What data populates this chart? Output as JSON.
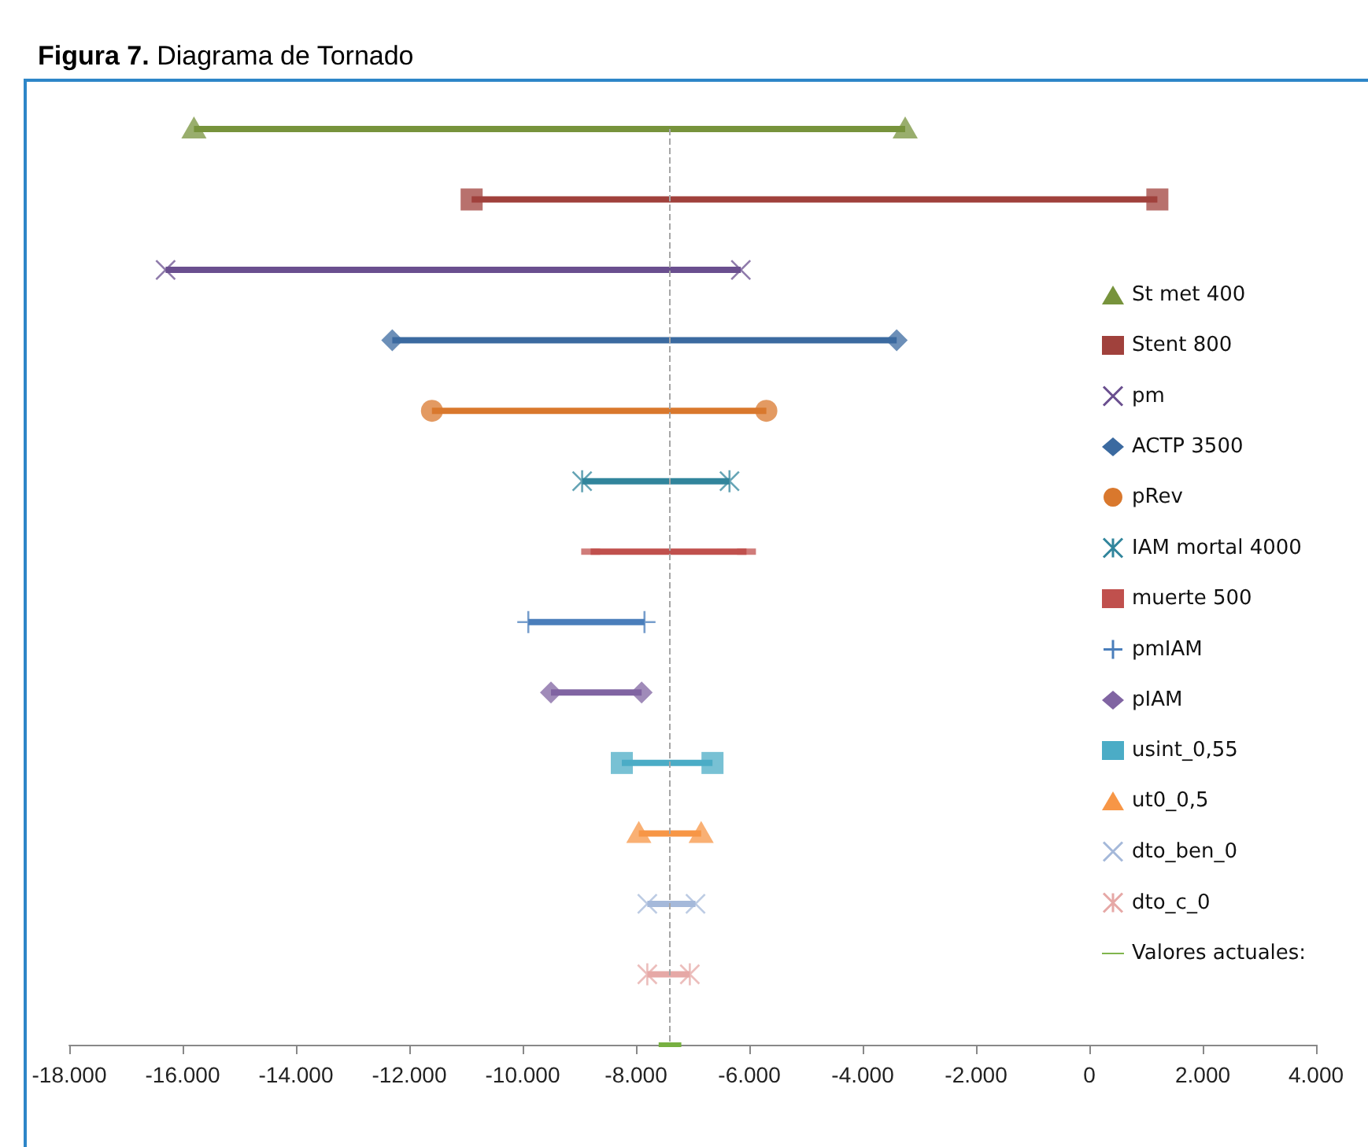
{
  "chart_data": {
    "type": "bar",
    "orientation": "horizontal",
    "title": "Figura 7. Diagrama de Tornado",
    "categories": [
      null,
      null,
      null,
      null,
      null,
      null,
      null,
      null,
      null,
      null,
      null,
      null,
      null,
      null
    ],
    "xlim": [
      -18000,
      4000
    ],
    "xticks": [
      {
        "value": -18000,
        "label": "-18.000"
      },
      {
        "value": -16000,
        "label": "-16.000"
      },
      {
        "value": -14000,
        "label": "-14.000"
      },
      {
        "value": -12000,
        "label": "-12.000"
      },
      {
        "value": -10000,
        "label": "-10.000"
      },
      {
        "value": -8000,
        "label": "-8.000"
      },
      {
        "value": -6000,
        "label": "-6.000"
      },
      {
        "value": -4000,
        "label": "-4.000"
      },
      {
        "value": -2000,
        "label": "-2.000"
      },
      {
        "value": 0,
        "label": "0"
      },
      {
        "value": 2000,
        "label": "2.000"
      },
      {
        "value": 4000,
        "label": "4.000"
      }
    ],
    "tick_labels": "x",
    "grid": false,
    "legend": "right",
    "ref_lines": [
      {
        "axis": "x",
        "value": -7400,
        "color": "#a6a6a6",
        "line_style": "dashed"
      }
    ],
    "series": [
      {
        "name": "St met 400",
        "color": "#77933c",
        "marker": "triangle",
        "base": [
          -15800,
          null,
          null,
          null,
          null,
          null,
          null,
          null,
          null,
          null,
          null,
          null,
          null,
          null
        ],
        "values": [
          12550,
          null,
          null,
          null,
          null,
          null,
          null,
          null,
          null,
          null,
          null,
          null,
          null,
          null
        ]
      },
      {
        "name": "Stent 800",
        "color": "#a0413c",
        "marker": "square",
        "base": [
          null,
          -10900,
          null,
          null,
          null,
          null,
          null,
          null,
          null,
          null,
          null,
          null,
          null,
          null
        ],
        "values": [
          null,
          12100,
          null,
          null,
          null,
          null,
          null,
          null,
          null,
          null,
          null,
          null,
          null,
          null
        ]
      },
      {
        "name": "pm",
        "color": "#6a4f8f",
        "marker": "cross",
        "base": [
          null,
          null,
          -16300,
          null,
          null,
          null,
          null,
          null,
          null,
          null,
          null,
          null,
          null,
          null
        ],
        "values": [
          null,
          null,
          10150,
          null,
          null,
          null,
          null,
          null,
          null,
          null,
          null,
          null,
          null,
          null
        ]
      },
      {
        "name": "ACTP 3500",
        "color": "#3b6aa0",
        "marker": "diamond",
        "base": [
          null,
          null,
          null,
          -12300,
          null,
          null,
          null,
          null,
          null,
          null,
          null,
          null,
          null,
          null
        ],
        "values": [
          null,
          null,
          null,
          8900,
          null,
          null,
          null,
          null,
          null,
          null,
          null,
          null,
          null,
          null
        ]
      },
      {
        "name": "pRev",
        "color": "#d9782d",
        "marker": "circle",
        "base": [
          null,
          null,
          null,
          null,
          -11600,
          null,
          null,
          null,
          null,
          null,
          null,
          null,
          null,
          null
        ],
        "values": [
          null,
          null,
          null,
          null,
          5900,
          null,
          null,
          null,
          null,
          null,
          null,
          null,
          null,
          null
        ]
      },
      {
        "name": "IAM mortal 4000",
        "color": "#31859c",
        "marker": "star",
        "base": [
          null,
          null,
          null,
          null,
          null,
          -8950,
          null,
          null,
          null,
          null,
          null,
          null,
          null,
          null
        ],
        "values": [
          null,
          null,
          null,
          null,
          null,
          2600,
          null,
          null,
          null,
          null,
          null,
          null,
          null,
          null
        ]
      },
      {
        "name": "muerte 500",
        "color": "#c0504d",
        "marker": "dash",
        "base": [
          null,
          null,
          null,
          null,
          null,
          null,
          -8800,
          null,
          null,
          null,
          null,
          null,
          null,
          null
        ],
        "values": [
          null,
          null,
          null,
          null,
          null,
          null,
          2750,
          null,
          null,
          null,
          null,
          null,
          null,
          null
        ]
      },
      {
        "name": "pmIAM",
        "color": "#4a7ebb",
        "marker": "plus",
        "base": [
          null,
          null,
          null,
          null,
          null,
          null,
          null,
          -9900,
          null,
          null,
          null,
          null,
          null,
          null
        ],
        "values": [
          null,
          null,
          null,
          null,
          null,
          null,
          null,
          2050,
          null,
          null,
          null,
          null,
          null,
          null
        ]
      },
      {
        "name": "pIAM",
        "color": "#8064a2",
        "marker": "diamond",
        "base": [
          null,
          null,
          null,
          null,
          null,
          null,
          null,
          null,
          -9500,
          null,
          null,
          null,
          null,
          null
        ],
        "values": [
          null,
          null,
          null,
          null,
          null,
          null,
          null,
          null,
          1600,
          null,
          null,
          null,
          null,
          null
        ]
      },
      {
        "name": "usint_0,55",
        "color": "#4bacc6",
        "marker": "square",
        "base": [
          null,
          null,
          null,
          null,
          null,
          null,
          null,
          null,
          null,
          -8250,
          null,
          null,
          null,
          null
        ],
        "values": [
          null,
          null,
          null,
          null,
          null,
          null,
          null,
          null,
          null,
          1600,
          null,
          null,
          null,
          null
        ]
      },
      {
        "name": "ut0_0,5",
        "color": "#f79646",
        "marker": "triangle",
        "base": [
          null,
          null,
          null,
          null,
          null,
          null,
          null,
          null,
          null,
          null,
          -7950,
          null,
          null,
          null
        ],
        "values": [
          null,
          null,
          null,
          null,
          null,
          null,
          null,
          null,
          null,
          null,
          1100,
          null,
          null,
          null
        ]
      },
      {
        "name": "dto_ben_0",
        "color": "#a5b9da",
        "marker": "cross",
        "base": [
          null,
          null,
          null,
          null,
          null,
          null,
          null,
          null,
          null,
          null,
          null,
          -7800,
          null,
          null
        ],
        "values": [
          null,
          null,
          null,
          null,
          null,
          null,
          null,
          null,
          null,
          null,
          null,
          850,
          null,
          null
        ]
      },
      {
        "name": "dto_c_0",
        "color": "#e6a8a6",
        "marker": "star",
        "base": [
          null,
          null,
          null,
          null,
          null,
          null,
          null,
          null,
          null,
          null,
          null,
          null,
          -7800,
          null
        ],
        "values": [
          null,
          null,
          null,
          null,
          null,
          null,
          null,
          null,
          null,
          null,
          null,
          null,
          750,
          null
        ]
      },
      {
        "name": "Valores actuales:",
        "color": "#77b041",
        "marker": "none",
        "base": [
          null,
          null,
          null,
          null,
          null,
          null,
          null,
          null,
          null,
          null,
          null,
          null,
          null,
          -7600
        ],
        "values": [
          null,
          null,
          null,
          null,
          null,
          null,
          null,
          null,
          null,
          null,
          null,
          null,
          null,
          400
        ]
      }
    ]
  }
}
